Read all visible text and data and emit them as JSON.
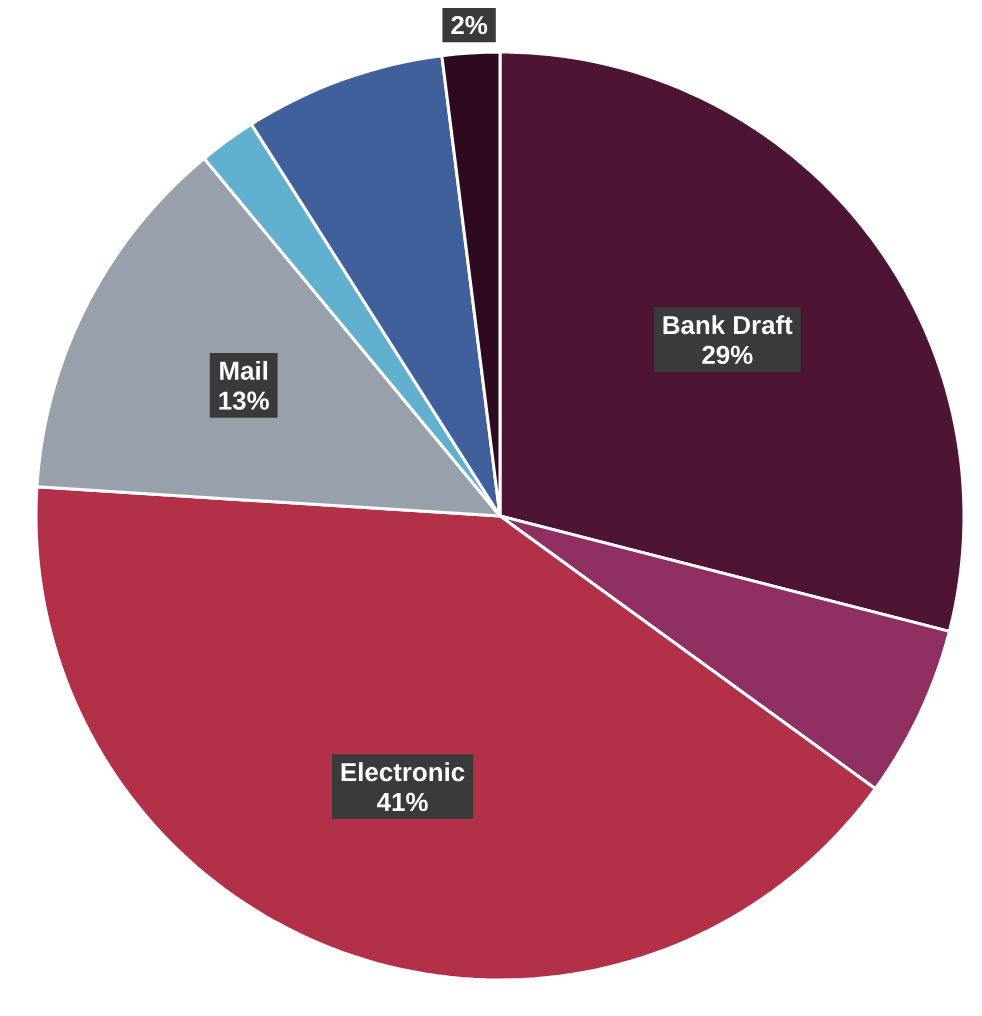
{
  "chart_data": {
    "type": "pie",
    "categories": [
      "Bank Draft",
      null,
      "Electronic",
      "Mail",
      null,
      null,
      null
    ],
    "values": [
      29,
      6,
      41,
      13,
      2,
      7,
      2
    ],
    "colors": [
      "#4e1433",
      "#8f2f62",
      "#b23148",
      "#98a1ab",
      "#62b0cf",
      "#40609c",
      "#2e0a20"
    ],
    "value_labels": [
      "29%",
      null,
      "41%",
      "13%",
      null,
      null,
      "2%"
    ]
  }
}
